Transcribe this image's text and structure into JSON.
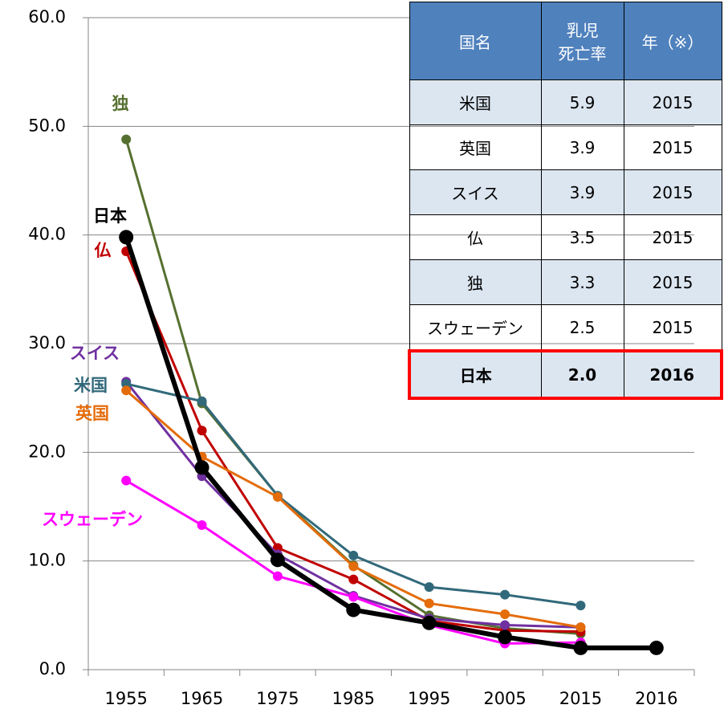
{
  "chart_data": {
    "type": "line",
    "categories": [
      "1955",
      "1965",
      "1975",
      "1985",
      "1995",
      "2005",
      "2015",
      "2016"
    ],
    "ylim": [
      0,
      60
    ],
    "yticks": [
      {
        "value": 0,
        "label": "0.0"
      },
      {
        "value": 10,
        "label": "10.0"
      },
      {
        "value": 20,
        "label": "20.0"
      },
      {
        "value": 30,
        "label": "30.0"
      },
      {
        "value": 40,
        "label": "40.0"
      },
      {
        "value": 50,
        "label": "50.0"
      },
      {
        "value": 60,
        "label": "60.0"
      }
    ],
    "grid": true,
    "series": [
      {
        "name": "独",
        "color": "#56702f",
        "values": [
          48.8,
          24.5,
          16.0,
          9.6,
          5.0,
          3.8,
          3.3,
          null
        ]
      },
      {
        "name": "仏",
        "color": "#c00000",
        "values": [
          38.5,
          22.0,
          11.2,
          8.3,
          4.5,
          3.6,
          3.5,
          null
        ]
      },
      {
        "name": "スイス",
        "color": "#7030a0",
        "values": [
          26.5,
          17.8,
          10.6,
          6.8,
          4.7,
          4.1,
          3.9,
          null
        ]
      },
      {
        "name": "米国",
        "color": "#31697a",
        "values": [
          26.3,
          24.7,
          16.0,
          10.5,
          7.6,
          6.9,
          5.9,
          null
        ]
      },
      {
        "name": "英国",
        "color": "#e46c0a",
        "values": [
          25.7,
          19.6,
          15.9,
          9.5,
          6.1,
          5.1,
          3.9,
          null
        ]
      },
      {
        "name": "スウェーデン",
        "color": "#ff00ff",
        "values": [
          17.4,
          13.3,
          8.6,
          6.7,
          4.1,
          2.4,
          2.5,
          null
        ]
      },
      {
        "name": "日本",
        "color": "#000000",
        "values": [
          39.8,
          18.6,
          10.1,
          5.5,
          4.3,
          3.0,
          2.0,
          2.0
        ]
      }
    ]
  },
  "table": {
    "header": [
      "国名",
      [
        "乳児",
        "死亡率"
      ],
      "年（※）"
    ],
    "rows": [
      [
        "米国",
        "5.9",
        "2015"
      ],
      [
        "英国",
        "3.9",
        "2015"
      ],
      [
        "スイス",
        "3.9",
        "2015"
      ],
      [
        "仏",
        "3.5",
        "2015"
      ],
      [
        "独",
        "3.3",
        "2015"
      ],
      [
        "スウェーデン",
        "2.5",
        "2015"
      ],
      [
        "日本",
        "2.0",
        "2016"
      ]
    ]
  }
}
